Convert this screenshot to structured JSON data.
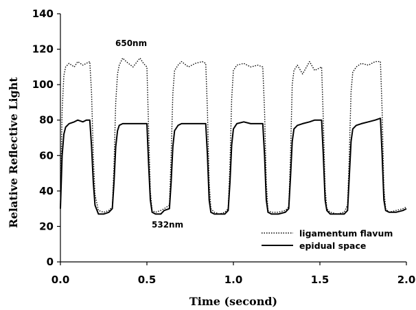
{
  "chart_data": {
    "type": "line",
    "xlabel": "Time (second)",
    "ylabel": "Relative Reflective Light",
    "xlim": [
      0,
      2.0
    ],
    "ylim": [
      0,
      140
    ],
    "x_ticks": [
      "0.0",
      "0.5",
      "1.0",
      "1.5",
      "2.0"
    ],
    "y_ticks": [
      "0",
      "20",
      "40",
      "60",
      "80",
      "100",
      "120",
      "140"
    ],
    "grid": false,
    "legend_position": "bottom-right",
    "annotations": [
      {
        "text": "650nm",
        "x": 0.28,
        "y": 125
      },
      {
        "text": "532nm",
        "x": 0.47,
        "y": 18
      }
    ],
    "series": [
      {
        "name": "ligamentum flavum",
        "style": "dotted",
        "x": [
          0.0,
          0.01,
          0.02,
          0.03,
          0.05,
          0.08,
          0.1,
          0.13,
          0.15,
          0.17,
          0.18,
          0.19,
          0.2,
          0.22,
          0.25,
          0.28,
          0.3,
          0.31,
          0.32,
          0.33,
          0.34,
          0.36,
          0.38,
          0.42,
          0.46,
          0.48,
          0.5,
          0.51,
          0.52,
          0.53,
          0.55,
          0.58,
          0.6,
          0.63,
          0.64,
          0.65,
          0.66,
          0.68,
          0.7,
          0.74,
          0.78,
          0.82,
          0.84,
          0.85,
          0.86,
          0.87,
          0.89,
          0.92,
          0.95,
          0.97,
          0.98,
          0.99,
          1.0,
          1.02,
          1.06,
          1.1,
          1.14,
          1.17,
          1.18,
          1.19,
          1.2,
          1.22,
          1.26,
          1.3,
          1.32,
          1.33,
          1.34,
          1.35,
          1.37,
          1.4,
          1.44,
          1.47,
          1.51,
          1.52,
          1.53,
          1.54,
          1.56,
          1.6,
          1.64,
          1.66,
          1.67,
          1.68,
          1.69,
          1.71,
          1.74,
          1.78,
          1.82,
          1.85,
          1.86,
          1.87,
          1.88,
          1.9,
          1.94,
          1.98,
          2.0
        ],
        "values": [
          31,
          85,
          105,
          110,
          112,
          110,
          113,
          111,
          112,
          113,
          95,
          60,
          38,
          29,
          28,
          29,
          31,
          55,
          90,
          106,
          111,
          115,
          113,
          110,
          115,
          112,
          110,
          75,
          40,
          29,
          28,
          29,
          30,
          32,
          60,
          95,
          108,
          111,
          113,
          110,
          112,
          113,
          112,
          85,
          45,
          30,
          28,
          27,
          28,
          30,
          55,
          92,
          108,
          111,
          112,
          110,
          111,
          110,
          85,
          45,
          29,
          28,
          28,
          29,
          31,
          60,
          100,
          108,
          111,
          106,
          113,
          108,
          110,
          80,
          42,
          30,
          28,
          27,
          28,
          32,
          60,
          96,
          107,
          110,
          112,
          111,
          113,
          113,
          85,
          42,
          30,
          28,
          29,
          30,
          31
        ]
      },
      {
        "name": "epidual space",
        "style": "solid",
        "x": [
          0.0,
          0.01,
          0.02,
          0.03,
          0.05,
          0.08,
          0.1,
          0.13,
          0.15,
          0.17,
          0.18,
          0.19,
          0.2,
          0.22,
          0.25,
          0.28,
          0.3,
          0.31,
          0.32,
          0.33,
          0.34,
          0.36,
          0.38,
          0.42,
          0.46,
          0.48,
          0.5,
          0.51,
          0.52,
          0.53,
          0.55,
          0.58,
          0.6,
          0.63,
          0.64,
          0.65,
          0.66,
          0.68,
          0.7,
          0.74,
          0.78,
          0.82,
          0.84,
          0.85,
          0.86,
          0.87,
          0.89,
          0.92,
          0.95,
          0.97,
          0.98,
          0.99,
          1.0,
          1.02,
          1.06,
          1.1,
          1.14,
          1.17,
          1.18,
          1.19,
          1.2,
          1.22,
          1.26,
          1.3,
          1.32,
          1.33,
          1.34,
          1.35,
          1.37,
          1.4,
          1.44,
          1.47,
          1.51,
          1.52,
          1.53,
          1.54,
          1.56,
          1.6,
          1.64,
          1.66,
          1.67,
          1.68,
          1.69,
          1.71,
          1.74,
          1.78,
          1.82,
          1.85,
          1.86,
          1.87,
          1.88,
          1.9,
          1.94,
          1.98,
          2.0
        ],
        "values": [
          30,
          60,
          72,
          76,
          78,
          79,
          80,
          79,
          80,
          80,
          65,
          45,
          32,
          27,
          27,
          28,
          30,
          45,
          65,
          74,
          77,
          78,
          78,
          78,
          78,
          78,
          78,
          55,
          35,
          28,
          27,
          27,
          29,
          30,
          45,
          65,
          74,
          77,
          78,
          78,
          78,
          78,
          78,
          60,
          35,
          28,
          27,
          27,
          27,
          29,
          45,
          66,
          75,
          78,
          79,
          78,
          78,
          78,
          60,
          35,
          28,
          27,
          27,
          28,
          30,
          48,
          68,
          75,
          77,
          78,
          79,
          80,
          80,
          60,
          35,
          29,
          27,
          27,
          27,
          29,
          48,
          68,
          75,
          77,
          78,
          79,
          80,
          81,
          60,
          35,
          29,
          28,
          28,
          29,
          30
        ]
      }
    ]
  }
}
